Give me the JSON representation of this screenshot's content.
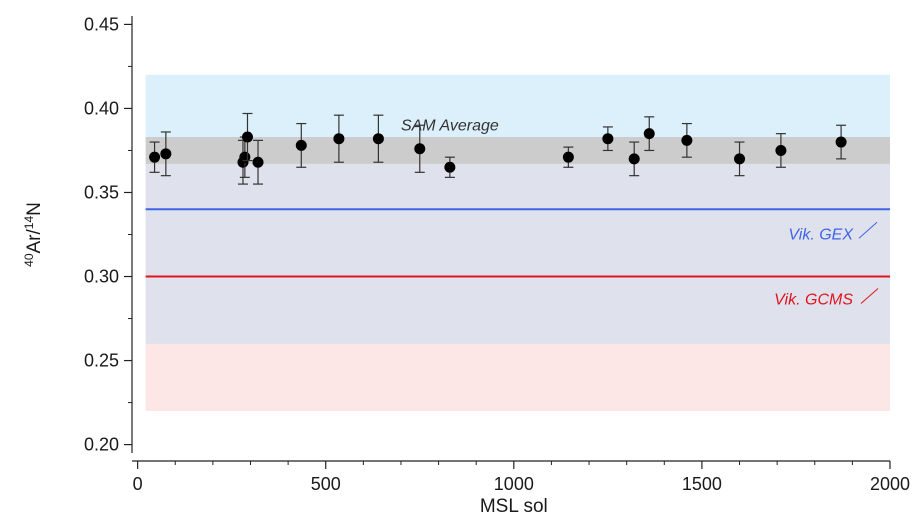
{
  "chart_data": {
    "type": "scatter",
    "xlabel": "MSL sol",
    "ylabel": {
      "sup1": "40",
      "main1": "Ar/",
      "sup2": "14",
      "main2": "N"
    },
    "xlim": [
      -15,
      2000
    ],
    "ylim": [
      0.195,
      0.455
    ],
    "xticks": [
      0,
      500,
      1000,
      1500,
      2000
    ],
    "xtick_labels": [
      "0",
      "500",
      "1000",
      "1500",
      "2000"
    ],
    "yticks": [
      0.2,
      0.25,
      0.3,
      0.35,
      0.4,
      0.45
    ],
    "ytick_labels": [
      "0.20",
      "0.25",
      "0.30",
      "0.35",
      "0.40",
      "0.45"
    ],
    "grid": false,
    "bands": [
      {
        "name": "blue-band",
        "y_range": [
          0.22,
          0.42
        ],
        "color": "#dcf0fb"
      },
      {
        "name": "pink-band",
        "y_range": [
          0.22,
          0.26
        ],
        "color": "#fde6e6"
      },
      {
        "name": "overlap-band",
        "y_range": [
          0.26,
          0.367
        ],
        "color": "#dfe2ec"
      },
      {
        "name": "sam-band",
        "y_range": [
          0.367,
          0.383
        ],
        "color": "#cccccc"
      }
    ],
    "band_x_range": [
      0,
      2000
    ],
    "hlines": [
      {
        "name": "vik-gex-line",
        "y": 0.34,
        "color": "#3f64e8"
      },
      {
        "name": "vik-gcms-line",
        "y": 0.3,
        "color": "#e0141e"
      }
    ],
    "annotations": [
      {
        "name": "sam-average-label",
        "text": "SAM Average",
        "color": "#333333"
      },
      {
        "name": "vik-gex-label",
        "text": "Vik. GEX",
        "color": "#3f64e8"
      },
      {
        "name": "vik-gcms-label",
        "text": "Vik. GCMS",
        "color": "#e0141e"
      }
    ],
    "series": [
      {
        "marker": "circle",
        "color": "#000000",
        "points": [
          {
            "x": 45,
            "y": 0.371,
            "err": 0.009
          },
          {
            "x": 75,
            "y": 0.373,
            "err": 0.013
          },
          {
            "x": 280,
            "y": 0.368,
            "err": 0.013
          },
          {
            "x": 285,
            "y": 0.371,
            "err": 0.012
          },
          {
            "x": 292,
            "y": 0.383,
            "err": 0.014
          },
          {
            "x": 320,
            "y": 0.368,
            "err": 0.013
          },
          {
            "x": 435,
            "y": 0.378,
            "err": 0.013
          },
          {
            "x": 535,
            "y": 0.382,
            "err": 0.014
          },
          {
            "x": 640,
            "y": 0.382,
            "err": 0.014
          },
          {
            "x": 750,
            "y": 0.376,
            "err": 0.014
          },
          {
            "x": 830,
            "y": 0.365,
            "err": 0.006
          },
          {
            "x": 1145,
            "y": 0.371,
            "err": 0.006
          },
          {
            "x": 1250,
            "y": 0.382,
            "err": 0.007
          },
          {
            "x": 1320,
            "y": 0.37,
            "err": 0.01
          },
          {
            "x": 1360,
            "y": 0.385,
            "err": 0.01
          },
          {
            "x": 1460,
            "y": 0.381,
            "err": 0.01
          },
          {
            "x": 1600,
            "y": 0.37,
            "err": 0.01
          },
          {
            "x": 1710,
            "y": 0.375,
            "err": 0.01
          },
          {
            "x": 1870,
            "y": 0.38,
            "err": 0.01
          }
        ]
      }
    ]
  }
}
